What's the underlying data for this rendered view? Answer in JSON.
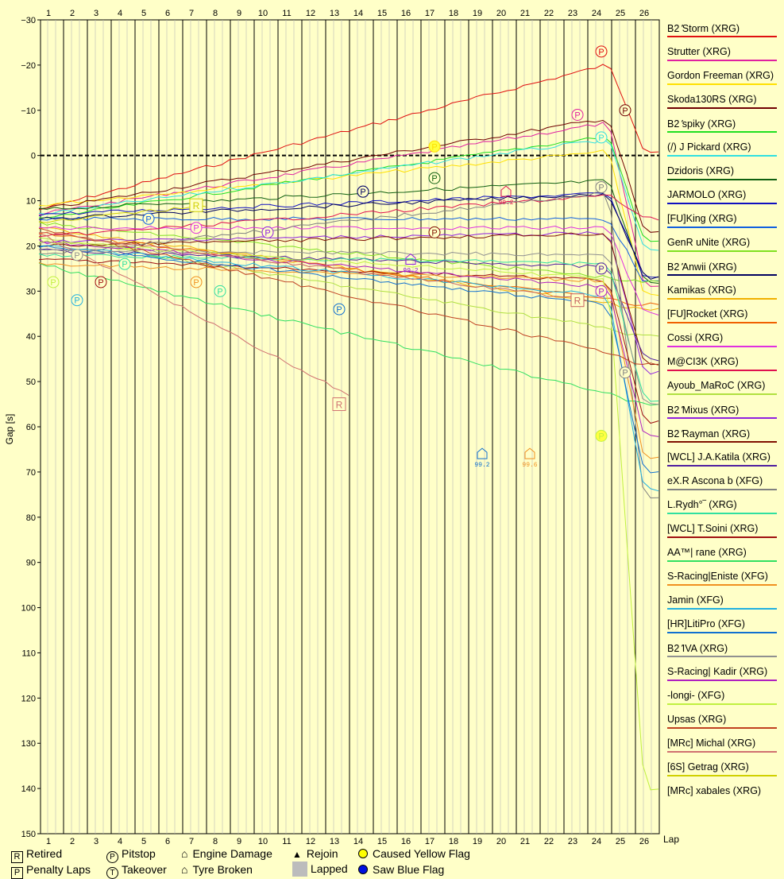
{
  "chart_data": {
    "type": "line",
    "ylabel": "Gap [s]",
    "xlabel": "Lap",
    "x_ticks": [
      "1",
      "2",
      "3",
      "4",
      "5",
      "6",
      "7",
      "8",
      "9",
      "10",
      "11",
      "12",
      "13",
      "14",
      "15",
      "16",
      "17",
      "18",
      "19",
      "20",
      "21",
      "22",
      "23",
      "24",
      "25",
      "26"
    ],
    "y_ticks": [
      "−30",
      "−20",
      "−10",
      "0",
      "10",
      "20",
      "30",
      "40",
      "50",
      "60",
      "70",
      "80",
      "90",
      "100",
      "110",
      "120",
      "130",
      "140",
      "150"
    ],
    "ylim": [
      -30,
      150
    ],
    "xlim": [
      0.6,
      26.6
    ],
    "y_inverted": true,
    "grid": true,
    "legend_position": "right",
    "series": [
      {
        "name": "B2ۢ Storm (XRG)",
        "color": "#e01010",
        "start": 12,
        "end": -23,
        "events": [
          {
            "lap": 24,
            "type": "P",
            "gap": -23
          }
        ],
        "final": -1
      },
      {
        "name": "Strutter (XRG)",
        "color": "#e020a0",
        "start": 13,
        "end": -9,
        "events": [
          {
            "lap": 23,
            "type": "P",
            "gap": -9
          }
        ],
        "final": 29
      },
      {
        "name": "Gordon Freeman (XRG)",
        "color": "#ffe000",
        "start": 11,
        "end": -2,
        "events": [
          {
            "lap": 17,
            "type": "C",
            "gap": -2
          }
        ],
        "final": 31
      },
      {
        "name": "Skoda130RS (XRG)",
        "color": "#700000",
        "start": 12,
        "end": -10,
        "events": [
          {
            "lap": 25,
            "type": "P",
            "gap": -10
          }
        ],
        "final": 17
      },
      {
        "name": "B2ۢ spiky (XRG)",
        "color": "#20e020",
        "start": 14,
        "end": -6,
        "final": 19
      },
      {
        "name": "(/) J Pickard (XRG)",
        "color": "#30e0e0",
        "start": 13,
        "end": -5,
        "events": [
          {
            "lap": 24,
            "type": "P",
            "gap": -4
          }
        ],
        "final": 21
      },
      {
        "name": "Dzidoris (XRG)",
        "color": "#106010",
        "start": 12,
        "end": 5,
        "events": [
          {
            "lap": 17,
            "type": "P",
            "gap": 5
          }
        ],
        "final": 28
      },
      {
        "name": "JARMOLO (XRG)",
        "color": "#1010c0",
        "start": 13,
        "end": 8,
        "events": [
          {
            "lap": 14,
            "type": "P",
            "gap": 8
          }
        ],
        "final": 27
      },
      {
        "name": "[FU]King (XRG)",
        "color": "#1060e0",
        "start": 14,
        "end": 14,
        "events": [
          {
            "lap": 5,
            "type": "P",
            "gap": 14
          }
        ],
        "final": 28
      },
      {
        "name": "GenR uNite (XRG)",
        "color": "#80e020",
        "start": 15,
        "end": 28,
        "final": 28
      },
      {
        "name": "B2ۢ Anwii (XRG)",
        "color": "#000060",
        "start": 14,
        "end": 8,
        "events": [
          {
            "lap": 14,
            "type": "P",
            "gap": 8
          }
        ],
        "final": 27
      },
      {
        "name": "Kamikas (XRG)",
        "color": "#f0b000",
        "start": 16,
        "end": 34,
        "final": 34
      },
      {
        "name": "[FU]Rocket (XRG)",
        "color": "#f06000",
        "start": 17,
        "end": 33,
        "final": 33
      },
      {
        "name": "Cossi (XRG)",
        "color": "#e030e0",
        "start": 16,
        "end": 16,
        "events": [
          {
            "lap": 7,
            "type": "P",
            "gap": 16
          }
        ],
        "final": 35
      },
      {
        "name": "M@CI3K (XRG)",
        "color": "#e01050",
        "start": 18,
        "end": 8,
        "events": [
          {
            "lap": 20,
            "type": "E",
            "gap": 8,
            "label": "99.2"
          }
        ],
        "final": 14
      },
      {
        "name": "Ayoub_MaRoC (XRG)",
        "color": "#b0e040",
        "start": 18,
        "end": 40,
        "final": 40
      },
      {
        "name": "B2ۢ Mixus (XRG)",
        "color": "#9020e0",
        "start": 19,
        "end": 17,
        "events": [
          {
            "lap": 10,
            "type": "P",
            "gap": 17
          },
          {
            "lap": 16,
            "type": "E",
            "gap": 23,
            "label": "99.2"
          }
        ],
        "final": 48
      },
      {
        "name": "B2ۢ Rayman (XRG)",
        "color": "#801000",
        "start": 20,
        "end": 17,
        "events": [
          {
            "lap": 17,
            "type": "P",
            "gap": 17
          }
        ],
        "final": 46
      },
      {
        "name": "[WCL] J.A.Katila (XRG)",
        "color": "#5020a0",
        "start": 21,
        "end": 25,
        "events": [
          {
            "lap": 24,
            "type": "P",
            "gap": 25
          }
        ],
        "final": 45
      },
      {
        "name": "eX.R Ascona b (XFG)",
        "color": "#808080",
        "start": 22,
        "end": 7,
        "events": [
          {
            "lap": 24,
            "type": "P",
            "gap": 7
          },
          {
            "lap": 25,
            "type": "P",
            "gap": 48
          }
        ],
        "final": 76
      },
      {
        "name": "L.Rydh°‾ (XRG)",
        "color": "#30e0a0",
        "start": 22,
        "end": 24,
        "events": [
          {
            "lap": 4,
            "type": "P",
            "gap": 24
          },
          {
            "lap": 8,
            "type": "P",
            "gap": 30
          }
        ],
        "final": 54
      },
      {
        "name": "[WCL] T.Soini (XRG)",
        "color": "#a01010",
        "start": 23,
        "end": 28,
        "events": [
          {
            "lap": 3,
            "type": "P",
            "gap": 28
          }
        ],
        "final": 59
      },
      {
        "name": "AA™| rane (XRG)",
        "color": "#30e060",
        "start": 24,
        "end": 55,
        "final": 55
      },
      {
        "name": "S-Racing|Eniste (XFG)",
        "color": "#f09020",
        "start": 24,
        "end": 28,
        "events": [
          {
            "lap": 7,
            "type": "P",
            "gap": 28
          },
          {
            "lap": 21,
            "type": "E",
            "gap": 66,
            "label": "99.6"
          }
        ],
        "final": 67
      },
      {
        "name": "Jamin (XFG)",
        "color": "#20b0e0",
        "start": 20,
        "end": 32,
        "events": [
          {
            "lap": 2,
            "type": "P",
            "gap": 32
          }
        ],
        "final": 74
      },
      {
        "name": "[HR]LitiPro (XFG)",
        "color": "#1070d0",
        "start": 20,
        "end": 34,
        "events": [
          {
            "lap": 13,
            "type": "P",
            "gap": 34
          },
          {
            "lap": 19,
            "type": "E",
            "gap": 66,
            "label": "99.2"
          }
        ],
        "final": 70
      },
      {
        "name": "B2ۢ IVA (XRG)",
        "color": "#909090",
        "start": 21,
        "end": 22,
        "events": [
          {
            "lap": 2,
            "type": "P",
            "gap": 22
          }
        ],
        "final": 55
      },
      {
        "name": "S-Racing| Kadir (XRG)",
        "color": "#b020c0",
        "start": 19,
        "end": 30,
        "events": [
          {
            "lap": 24,
            "type": "P",
            "gap": 30
          }
        ],
        "final": 62
      },
      {
        "name": "-longi- (XFG)",
        "color": "#c0f040",
        "start": 19,
        "end": 28,
        "events": [
          {
            "lap": 1,
            "type": "P",
            "gap": 28
          },
          {
            "lap": 24,
            "type": "C",
            "gap": 62
          }
        ],
        "final": 140
      },
      {
        "name": "Upsas (XRG)",
        "color": "#c04020",
        "start": 16,
        "end": 46,
        "final": 46
      },
      {
        "name": "[MRc] Michal (XRG)",
        "color": "#d07070",
        "start": 17,
        "end": 53,
        "events": [
          {
            "lap": 13,
            "type": "R",
            "gap": 55
          }
        ],
        "final": null
      },
      {
        "name": "[6S] Getrag (XRG)",
        "color": "#d0d000",
        "start": 15,
        "end": 11,
        "events": [
          {
            "lap": 7,
            "type": "R",
            "gap": 11
          }
        ],
        "final": null
      },
      {
        "name": "[MRc] xabales (XRG)",
        "color": "#c86060",
        "start": 17,
        "end": 32,
        "events": [
          {
            "lap": 23,
            "type": "R",
            "gap": 32
          }
        ],
        "final": null
      }
    ]
  },
  "key": {
    "retired": "Retired",
    "penalty": "Penalty Laps",
    "pitstop": "Pitstop",
    "takeover": "Takeover",
    "engine": "Engine Damage",
    "tyre": "Tyre Broken",
    "rejoin": "Rejoin",
    "lapped": "Lapped",
    "yellow": "Caused Yellow Flag",
    "blue": "Saw Blue Flag",
    "sym_r": "R",
    "sym_p": "P",
    "sym_t": "T"
  }
}
